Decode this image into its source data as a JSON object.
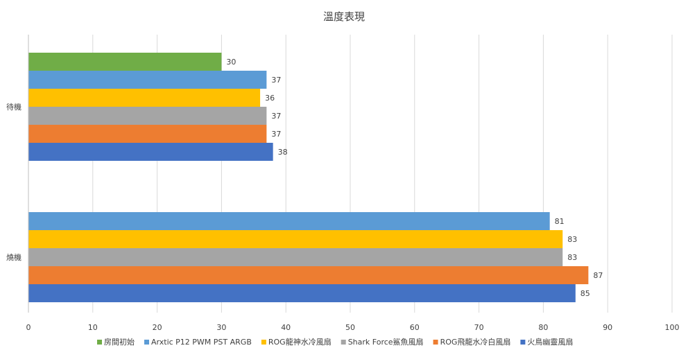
{
  "chart_data": {
    "type": "bar",
    "orientation": "horizontal",
    "title": "溫度表現",
    "xlabel": "",
    "ylabel": "",
    "xlim": [
      0,
      100
    ],
    "xticks": [
      0,
      10,
      20,
      30,
      40,
      50,
      60,
      70,
      80,
      90,
      100
    ],
    "grid": true,
    "legend_position": "bottom",
    "categories": [
      "待機",
      "燒機"
    ],
    "series": [
      {
        "name": "房間初始",
        "color": "#70ad47",
        "values": [
          30,
          null
        ]
      },
      {
        "name": "Arxtic P12 PWM PST ARGB",
        "color": "#5b9bd5",
        "values": [
          37,
          81
        ]
      },
      {
        "name": "ROG龍神水冷風扇",
        "color": "#ffc000",
        "values": [
          36,
          83
        ]
      },
      {
        "name": "Shark Force鯊魚風扇",
        "color": "#a5a5a5",
        "values": [
          37,
          83
        ]
      },
      {
        "name": "ROG飛龍水冷白風扇",
        "color": "#ed7d31",
        "values": [
          37,
          87
        ]
      },
      {
        "name": "火鳥幽靈風扇",
        "color": "#4472c4",
        "values": [
          38,
          85
        ]
      }
    ]
  }
}
